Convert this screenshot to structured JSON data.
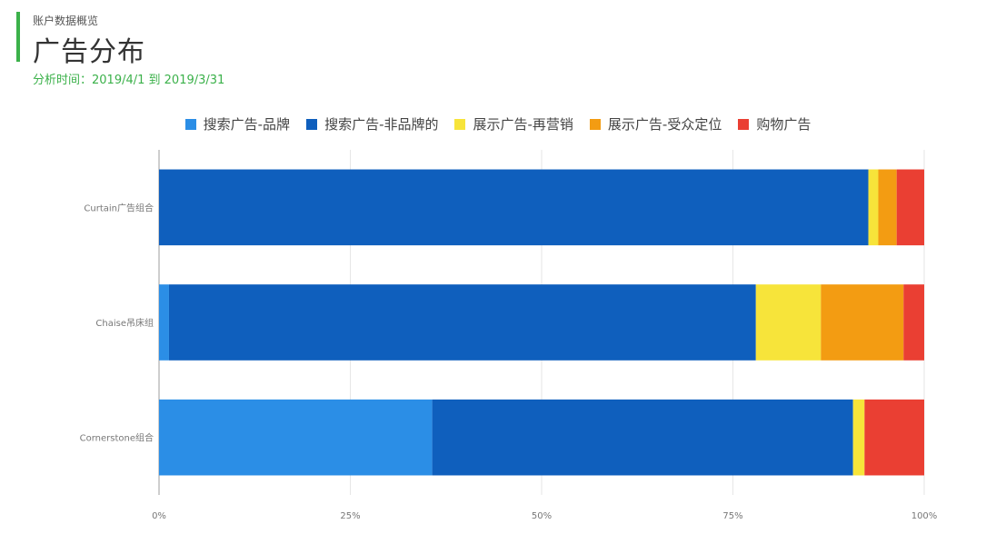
{
  "header": {
    "section_label": "账户数据概览",
    "title": "广告分布",
    "date_range": "分析时间：2019/4/1 到 2019/3/31"
  },
  "chart_data": {
    "type": "bar",
    "orientation": "horizontal",
    "stacked": true,
    "percent": true,
    "categories": [
      "Curtain广告组合",
      "Chaise吊床组",
      "Cornerstone组合"
    ],
    "series": [
      {
        "name": "搜索广告-品牌",
        "color": "#2b8ee6",
        "values": [
          0,
          1.3,
          35.7
        ]
      },
      {
        "name": "搜索广告-非品牌的",
        "color": "#0f5fbd",
        "values": [
          92.7,
          76.7,
          55.0
        ]
      },
      {
        "name": "展示广告-再营销",
        "color": "#f7e43a",
        "values": [
          1.3,
          8.5,
          1.5
        ]
      },
      {
        "name": "展示广告-受众定位",
        "color": "#f39c12",
        "values": [
          2.4,
          10.8,
          0
        ]
      },
      {
        "name": "购物广告",
        "color": "#ea3f33",
        "values": [
          3.6,
          2.7,
          7.8
        ]
      }
    ],
    "xlim": [
      0,
      100
    ],
    "xticks": [
      "0%",
      "25%",
      "50%",
      "75%",
      "100%"
    ],
    "grid": true,
    "legend_position": "top"
  }
}
